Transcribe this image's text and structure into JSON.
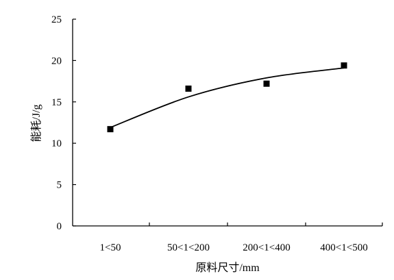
{
  "chart_data": {
    "type": "scatter",
    "categories": [
      "1<50",
      "50<1<200",
      "200<1<400",
      "400<1<500"
    ],
    "series": [
      {
        "values": [
          11.7,
          16.6,
          17.2,
          19.4
        ],
        "marker": "square",
        "color": "#000000"
      }
    ],
    "trendline": {
      "values": [
        11.9,
        15.6,
        17.9,
        19.1
      ]
    },
    "xlabel": "原料尺寸/mm",
    "ylabel": "能耗/J/g",
    "ylim": [
      0,
      25
    ],
    "yticks": [
      0,
      5,
      10,
      15,
      20,
      25
    ],
    "grid": false,
    "legend": "none"
  }
}
